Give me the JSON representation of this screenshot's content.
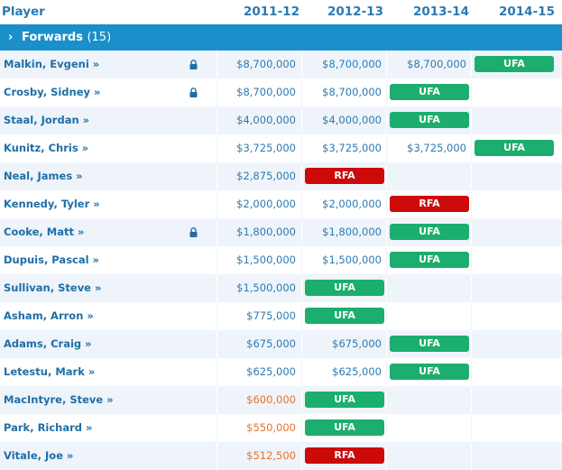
{
  "header": {
    "player": "Player",
    "seasons": [
      "2011-12",
      "2012-13",
      "2013-14",
      "2014-15"
    ]
  },
  "group": {
    "chevron": "›",
    "label": "Forwards",
    "count": "(15)"
  },
  "rows": [
    {
      "name": "Malkin, Evgeni »",
      "locked": true,
      "c1": "$8,700,000",
      "c2": "$8,700,000",
      "c3": "$8,700,000",
      "badge": "UFA",
      "badge_col": 4,
      "badge_type": "ufa",
      "c1_color": "blue"
    },
    {
      "name": "Crosby, Sidney »",
      "locked": true,
      "c1": "$8,700,000",
      "c2": "$8,700,000",
      "c3": "",
      "badge": "UFA",
      "badge_col": 3,
      "badge_type": "ufa",
      "c1_color": "blue"
    },
    {
      "name": "Staal, Jordan »",
      "locked": false,
      "c1": "$4,000,000",
      "c2": "$4,000,000",
      "c3": "",
      "badge": "UFA",
      "badge_col": 3,
      "badge_type": "ufa",
      "c1_color": "blue"
    },
    {
      "name": "Kunitz, Chris »",
      "locked": false,
      "c1": "$3,725,000",
      "c2": "$3,725,000",
      "c3": "$3,725,000",
      "badge": "UFA",
      "badge_col": 4,
      "badge_type": "ufa",
      "c1_color": "blue"
    },
    {
      "name": "Neal, James »",
      "locked": false,
      "c1": "$2,875,000",
      "c2": "",
      "c3": "",
      "badge": "RFA",
      "badge_col": 2,
      "badge_type": "rfa",
      "c1_color": "blue"
    },
    {
      "name": "Kennedy, Tyler »",
      "locked": false,
      "c1": "$2,000,000",
      "c2": "$2,000,000",
      "c3": "",
      "badge": "RFA",
      "badge_col": 3,
      "badge_type": "rfa",
      "c1_color": "blue"
    },
    {
      "name": "Cooke, Matt »",
      "locked": true,
      "c1": "$1,800,000",
      "c2": "$1,800,000",
      "c3": "",
      "badge": "UFA",
      "badge_col": 3,
      "badge_type": "ufa",
      "c1_color": "blue"
    },
    {
      "name": "Dupuis, Pascal »",
      "locked": false,
      "c1": "$1,500,000",
      "c2": "$1,500,000",
      "c3": "",
      "badge": "UFA",
      "badge_col": 3,
      "badge_type": "ufa",
      "c1_color": "blue"
    },
    {
      "name": "Sullivan, Steve »",
      "locked": false,
      "c1": "$1,500,000",
      "c2": "",
      "c3": "",
      "badge": "UFA",
      "badge_col": 2,
      "badge_type": "ufa",
      "c1_color": "blue"
    },
    {
      "name": "Asham, Arron »",
      "locked": false,
      "c1": "$775,000",
      "c2": "",
      "c3": "",
      "badge": "UFA",
      "badge_col": 2,
      "badge_type": "ufa",
      "c1_color": "blue"
    },
    {
      "name": "Adams, Craig »",
      "locked": false,
      "c1": "$675,000",
      "c2": "$675,000",
      "c3": "",
      "badge": "UFA",
      "badge_col": 3,
      "badge_type": "ufa",
      "c1_color": "blue"
    },
    {
      "name": "Letestu, Mark »",
      "locked": false,
      "c1": "$625,000",
      "c2": "$625,000",
      "c3": "",
      "badge": "UFA",
      "badge_col": 3,
      "badge_type": "ufa",
      "c1_color": "blue"
    },
    {
      "name": "MacIntyre, Steve »",
      "locked": false,
      "c1": "$600,000",
      "c2": "",
      "c3": "",
      "badge": "UFA",
      "badge_col": 2,
      "badge_type": "ufa",
      "c1_color": "orange"
    },
    {
      "name": "Park, Richard »",
      "locked": false,
      "c1": "$550,000",
      "c2": "",
      "c3": "",
      "badge": "UFA",
      "badge_col": 2,
      "badge_type": "ufa",
      "c1_color": "orange"
    },
    {
      "name": "Vitale, Joe »",
      "locked": false,
      "c1": "$512,500",
      "c2": "",
      "c3": "",
      "badge": "RFA",
      "badge_col": 2,
      "badge_type": "rfa",
      "c1_color": "orange"
    }
  ],
  "colors": {
    "link_blue": "#1f6ea6",
    "header_blue": "#2a7ab3",
    "group_bar": "#1a8fc9",
    "ufa_green": "#1cae6e",
    "rfa_red": "#cc0a0a",
    "low_salary_orange": "#e8702a",
    "row_stripe": "#eef4fa"
  }
}
